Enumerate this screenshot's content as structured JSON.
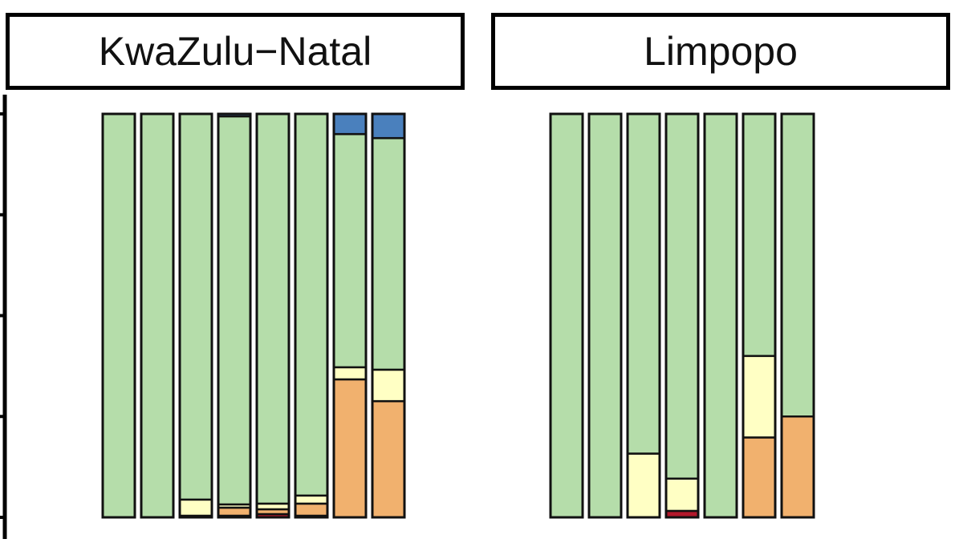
{
  "chart_data": {
    "type": "bar",
    "stacked": true,
    "normalized": true,
    "ylim": [
      0,
      1
    ],
    "colors": {
      "darkred": "#b2182b",
      "orange": "#f1b16e",
      "yellow": "#ffffc4",
      "green": "#b5ddaa",
      "blue": "#4a80bd"
    },
    "stack_order": [
      "darkred",
      "orange",
      "yellow",
      "green",
      "blue"
    ],
    "panels": [
      {
        "title": "KwaZulu−Natal",
        "bars": [
          {
            "darkred": 0,
            "orange": 0,
            "yellow": 0,
            "green": 1.0,
            "blue": 0
          },
          {
            "darkred": 0,
            "orange": 0,
            "yellow": 0,
            "green": 1.0,
            "blue": 0
          },
          {
            "darkred": 0.004,
            "orange": 0,
            "yellow": 0.04,
            "green": 0.956,
            "blue": 0
          },
          {
            "darkred": 0.004,
            "orange": 0.02,
            "yellow": 0.008,
            "green": 0.962,
            "blue": 0.006
          },
          {
            "darkred": 0.008,
            "orange": 0.012,
            "yellow": 0.014,
            "green": 0.966,
            "blue": 0
          },
          {
            "darkred": 0.004,
            "orange": 0.03,
            "yellow": 0.02,
            "green": 0.946,
            "blue": 0
          },
          {
            "darkred": 0,
            "orange": 0.342,
            "yellow": 0.03,
            "green": 0.578,
            "blue": 0.05
          },
          {
            "darkred": 0,
            "orange": 0.288,
            "yellow": 0.078,
            "green": 0.574,
            "blue": 0.06
          }
        ]
      },
      {
        "title": "Limpopo",
        "bars": [
          {
            "darkred": 0,
            "orange": 0,
            "yellow": 0,
            "green": 1.0,
            "blue": 0
          },
          {
            "darkred": 0,
            "orange": 0,
            "yellow": 0,
            "green": 1.0,
            "blue": 0
          },
          {
            "darkred": 0,
            "orange": 0,
            "yellow": 0.158,
            "green": 0.842,
            "blue": 0
          },
          {
            "darkred": 0.016,
            "orange": 0,
            "yellow": 0.08,
            "green": 0.904,
            "blue": 0
          },
          {
            "darkred": 0,
            "orange": 0,
            "yellow": 0,
            "green": 1.0,
            "blue": 0
          },
          {
            "darkred": 0,
            "orange": 0.198,
            "yellow": 0.202,
            "green": 0.6,
            "blue": 0
          },
          {
            "darkred": 0,
            "orange": 0.25,
            "yellow": 0,
            "green": 0.75,
            "blue": 0
          }
        ]
      }
    ]
  }
}
